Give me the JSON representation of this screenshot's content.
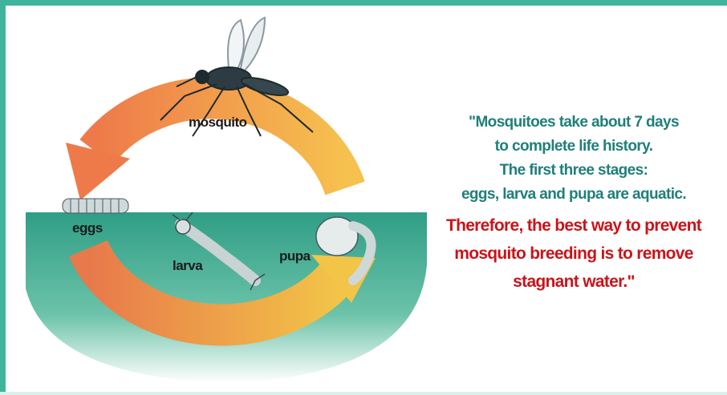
{
  "labels": {
    "mosquito": "mosquito",
    "eggs": "eggs",
    "larva": "larva",
    "pupa": "pupa"
  },
  "caption": {
    "info_lines": [
      "\"Mosquitoes take about 7 days",
      "to complete life history.",
      "The first three stages:",
      "eggs, larva and pupa are aquatic."
    ],
    "emphasis_lines": [
      "Therefore, the best way to prevent",
      "mosquito breeding is to remove",
      "stagnant water.\""
    ]
  }
}
